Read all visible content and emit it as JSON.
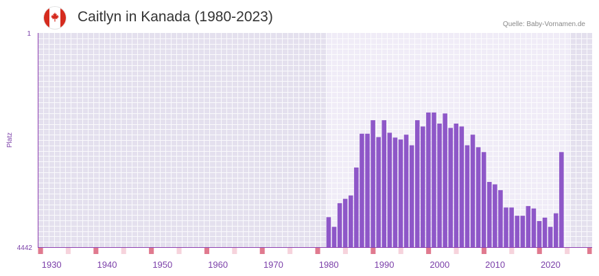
{
  "title": "Caitlyn in Kanada (1980-2023)",
  "source": "Quelle: Baby-Vornamen.de",
  "flag_icon": "canada-flag-icon",
  "colors": {
    "bar": "#8e57c8",
    "marker_decade": "#e07a8f",
    "marker_half": "#f6d3dc",
    "axis_text": "#7a3ea8",
    "plot_bg": "#e4e0ee",
    "plot_bg_active": "#f0ecf7",
    "grid": "#ffffff"
  },
  "chart_data": {
    "type": "bar",
    "title": "Caitlyn in Kanada (1980-2023)",
    "xlabel": "",
    "ylabel": "Platz",
    "y_reversed": true,
    "ylim": [
      1,
      4442
    ],
    "ytick_labels": [
      "1",
      "4442"
    ],
    "xlim": [
      1928,
      2028
    ],
    "xtick_values": [
      1930,
      1940,
      1950,
      1960,
      1970,
      1980,
      1990,
      2000,
      2010,
      2020
    ],
    "xtick_labels": [
      "1930",
      "1940",
      "1950",
      "1960",
      "1970",
      "1980",
      "1990",
      "2000",
      "2010",
      "2020"
    ],
    "highlight_range": [
      1980,
      2023
    ],
    "years": [
      1980,
      1981,
      1982,
      1983,
      1984,
      1985,
      1986,
      1987,
      1988,
      1989,
      1990,
      1991,
      1992,
      1993,
      1994,
      1995,
      1996,
      1997,
      1998,
      1999,
      2000,
      2001,
      2002,
      2003,
      2004,
      2005,
      2006,
      2007,
      2008,
      2009,
      2010,
      2011,
      2012,
      2013,
      2014,
      2015,
      2016,
      2017,
      2018,
      2019,
      2020,
      2021,
      2022
    ],
    "ranks": [
      3820,
      4020,
      3530,
      3440,
      3370,
      2790,
      2090,
      2090,
      1810,
      2160,
      1810,
      2070,
      2170,
      2210,
      2110,
      2330,
      1810,
      1940,
      1650,
      1650,
      1880,
      1670,
      1970,
      1880,
      1940,
      2330,
      2110,
      2370,
      2470,
      3090,
      3140,
      3260,
      3620,
      3620,
      3790,
      3790,
      3590,
      3640,
      3900,
      3830,
      4020,
      3740,
      2470
    ]
  }
}
